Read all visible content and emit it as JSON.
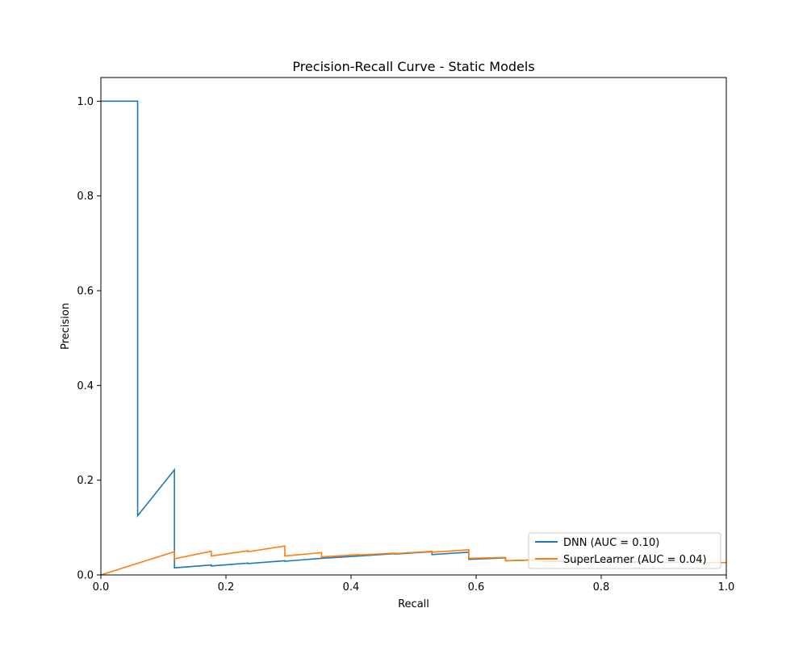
{
  "chart_data": {
    "type": "line",
    "title": "Precision-Recall Curve - Static Models",
    "xlabel": "Recall",
    "ylabel": "Precision",
    "xlim": [
      0,
      1
    ],
    "ylim": [
      0,
      1.05
    ],
    "xticks": [
      0.0,
      0.2,
      0.4,
      0.6,
      0.8,
      1.0
    ],
    "yticks": [
      0.0,
      0.2,
      0.4,
      0.6,
      0.8,
      1.0
    ],
    "xtick_labels": [
      "0.0",
      "0.2",
      "0.4",
      "0.6",
      "0.8",
      "1.0"
    ],
    "ytick_labels": [
      "0.0",
      "0.2",
      "0.4",
      "0.6",
      "0.8",
      "1.0"
    ],
    "grid": false,
    "legend_position": "lower-right",
    "series": [
      {
        "name": "DNN (AUC = 0.10)",
        "color": "#1f77b4",
        "x": [
          0.0,
          0.0588,
          0.0588,
          0.1176,
          0.1176,
          0.1765,
          0.1765,
          0.2353,
          0.2353,
          0.2941,
          0.2941,
          0.3529,
          0.3529,
          0.4118,
          0.4118,
          0.4706,
          0.4706,
          0.5294,
          0.5294,
          0.5882,
          0.5882,
          0.6471,
          0.6471,
          0.7059,
          0.7059,
          0.7647,
          0.7647,
          0.8235,
          0.8235,
          0.8824,
          0.8824,
          0.9412,
          0.9412,
          1.0
        ],
        "y": [
          1.0,
          1.0,
          0.125,
          0.222,
          0.015,
          0.021,
          0.019,
          0.025,
          0.024,
          0.03,
          0.029,
          0.035,
          0.035,
          0.04,
          0.04,
          0.045,
          0.044,
          0.049,
          0.043,
          0.048,
          0.033,
          0.036,
          0.03,
          0.032,
          0.028,
          0.03,
          0.027,
          0.029,
          0.026,
          0.027,
          0.026,
          0.027,
          0.026,
          0.026
        ]
      },
      {
        "name": "SuperLearner (AUC = 0.04)",
        "color": "#ff7f0e",
        "x": [
          0.0,
          0.1176,
          0.1176,
          0.1765,
          0.1765,
          0.2353,
          0.2353,
          0.2941,
          0.2941,
          0.3529,
          0.3529,
          0.4118,
          0.4118,
          0.4706,
          0.4706,
          0.5294,
          0.5294,
          0.5882,
          0.5882,
          0.6471,
          0.6471,
          0.7059,
          0.7059,
          0.7647,
          0.7647,
          0.8235,
          0.8235,
          0.8824,
          0.8824,
          0.9412,
          0.9412,
          1.0
        ],
        "y": [
          0.0,
          0.049,
          0.034,
          0.05,
          0.04,
          0.051,
          0.049,
          0.061,
          0.04,
          0.047,
          0.038,
          0.043,
          0.042,
          0.046,
          0.045,
          0.05,
          0.048,
          0.053,
          0.035,
          0.037,
          0.03,
          0.032,
          0.029,
          0.031,
          0.028,
          0.03,
          0.027,
          0.028,
          0.026,
          0.027,
          0.026,
          0.026
        ]
      }
    ]
  }
}
